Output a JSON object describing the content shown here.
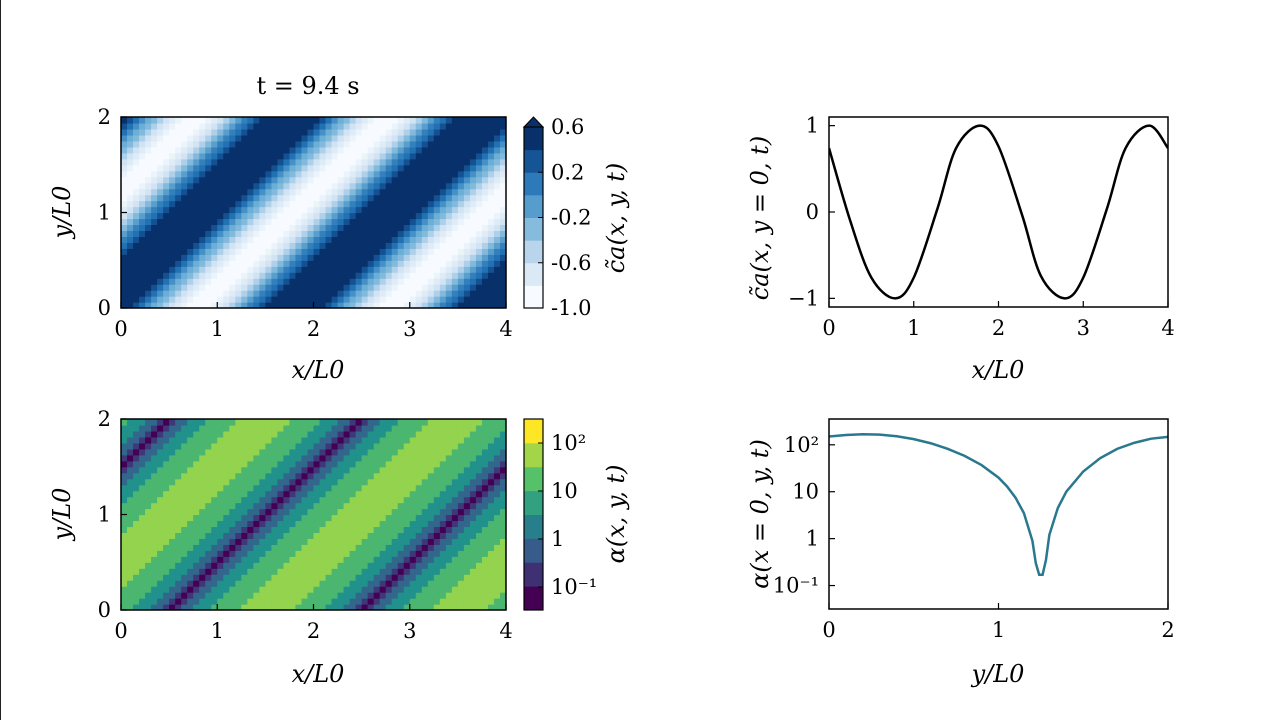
{
  "chart_data": [
    {
      "type": "heatmap",
      "title": "t = 9.4 s",
      "xlabel": "x/L0",
      "ylabel": "y/L0",
      "xlim": [
        0,
        4
      ],
      "ylim": [
        0,
        2
      ],
      "xticks": [
        "0",
        "1",
        "2",
        "3",
        "4"
      ],
      "yticks": [
        "0",
        "1",
        "2"
      ],
      "colorbar": {
        "label": "c̃a(x, y, t)",
        "range": [
          -1.0,
          0.6
        ],
        "ticks": [
          "0.6",
          "0.2",
          "-0.2",
          "-0.6",
          "-1.0"
        ],
        "colormap": "Blues",
        "extend": "max"
      }
    },
    {
      "type": "line",
      "xlabel": "x/L0",
      "ylabel": "c̃a(x, y = 0, t)",
      "xlim": [
        0,
        4
      ],
      "ylim": [
        -1.1,
        1.1
      ],
      "xticks": [
        "0",
        "1",
        "2",
        "3",
        "4"
      ],
      "yticks": [
        "1",
        "0",
        "−1"
      ],
      "color": "#000000",
      "series": [
        {
          "x": [
            0,
            0.25,
            0.5,
            0.78,
            1.0,
            1.28,
            1.5,
            1.78,
            2.0,
            2.28,
            2.5,
            2.78,
            3.0,
            3.28,
            3.5,
            3.78,
            4.0
          ],
          "values": [
            0.74,
            -0.1,
            -0.76,
            -1.0,
            -0.76,
            0.04,
            0.74,
            1.0,
            0.76,
            -0.04,
            -0.74,
            -1.0,
            -0.76,
            0.04,
            0.74,
            1.0,
            0.74
          ]
        }
      ]
    },
    {
      "type": "heatmap",
      "xlabel": "x/L0",
      "ylabel": "y/L0",
      "xlim": [
        0,
        4
      ],
      "ylim": [
        0,
        2
      ],
      "xticks": [
        "0",
        "1",
        "2",
        "3",
        "4"
      ],
      "yticks": [
        "0",
        "1",
        "2"
      ],
      "colorbar": {
        "label": "α(x, y, t)",
        "scale": "log",
        "ticks": [
          "10²",
          "10",
          "1",
          "10⁻¹"
        ],
        "colormap": "viridis"
      }
    },
    {
      "type": "line",
      "xlabel": "y/L0",
      "ylabel": "α(x = 0, y, t)",
      "yscale": "log",
      "xlim": [
        0,
        2
      ],
      "xticks": [
        "0",
        "1",
        "2"
      ],
      "yticks": [
        "10²",
        "10",
        "1",
        "10⁻¹"
      ],
      "color": "#2a788e",
      "series": [
        {
          "x": [
            0,
            0.1,
            0.2,
            0.3,
            0.4,
            0.5,
            0.6,
            0.7,
            0.8,
            0.9,
            1.0,
            1.05,
            1.1,
            1.15,
            1.2,
            1.22,
            1.24,
            1.26,
            1.28,
            1.3,
            1.35,
            1.4,
            1.5,
            1.6,
            1.7,
            1.8,
            1.9,
            2.0
          ],
          "values": [
            150,
            162,
            168,
            165,
            152,
            132,
            108,
            82,
            58,
            37,
            20,
            13,
            7.5,
            3.5,
            0.9,
            0.3,
            0.17,
            0.17,
            0.35,
            1.2,
            4.5,
            10,
            27,
            52,
            82,
            110,
            135,
            148
          ]
        }
      ]
    }
  ]
}
